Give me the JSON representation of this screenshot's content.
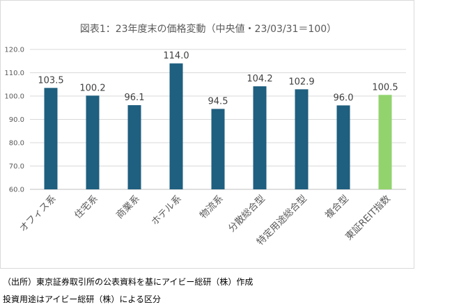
{
  "chart_data": {
    "type": "bar",
    "title": "図表1：23年度末の価格変動（中央値・23/03/31＝100）",
    "categories": [
      "オフィス系",
      "住宅系",
      "商業系",
      "ホテル系",
      "物流系",
      "分散総合型",
      "特定用途総合型",
      "複合型",
      "東証REIT指数"
    ],
    "values": [
      103.5,
      100.2,
      96.1,
      114.0,
      94.5,
      104.2,
      102.9,
      96.0,
      100.5
    ],
    "data_labels": [
      "103.5",
      "100.2",
      "96.1",
      "114.0",
      "94.5",
      "104.2",
      "102.9",
      "96.0",
      "100.5"
    ],
    "colors": [
      "#1f5f7f",
      "#1f5f7f",
      "#1f5f7f",
      "#1f5f7f",
      "#1f5f7f",
      "#1f5f7f",
      "#1f5f7f",
      "#1f5f7f",
      "#92d36e"
    ],
    "ylim": [
      60,
      120
    ],
    "yticks": [
      "60.0",
      "70.0",
      "80.0",
      "90.0",
      "100.0",
      "110.0",
      "120.0"
    ],
    "grid": true,
    "xlabel": "",
    "ylabel": ""
  },
  "notes": {
    "source": "（出所）東京証券取引所の公表資料を基にアイビー総研（株）作成",
    "classification": "投資用途はアイビー総研（株）による区分"
  }
}
